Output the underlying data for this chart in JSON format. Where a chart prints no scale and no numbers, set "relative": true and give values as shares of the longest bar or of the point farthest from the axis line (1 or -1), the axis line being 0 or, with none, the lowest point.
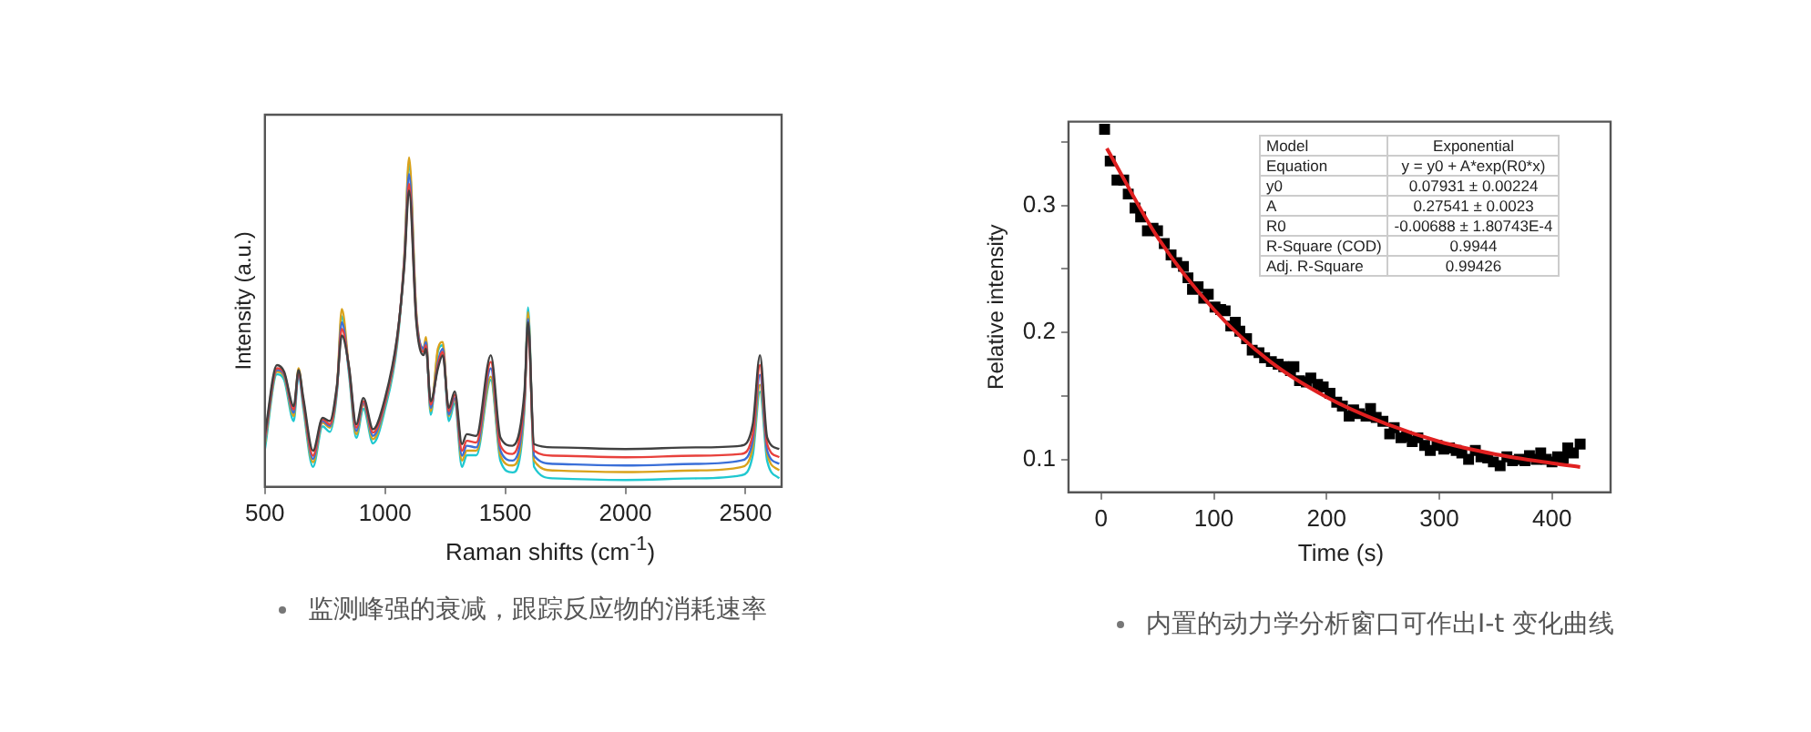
{
  "chart_data": [
    {
      "type": "line",
      "relative": true,
      "xlabel": "Raman shifts (cm$^{-1}$)",
      "ylabel": "Intensity (a.u.)",
      "xlim": [
        500,
        2650
      ],
      "xticks": [
        500,
        1000,
        1500,
        2000,
        2500
      ],
      "grid": false,
      "legend": false,
      "marker": "none",
      "x": [
        500,
        550,
        580,
        620,
        640,
        660,
        700,
        740,
        770,
        800,
        820,
        850,
        880,
        910,
        950,
        1000,
        1050,
        1080,
        1100,
        1130,
        1160,
        1170,
        1190,
        1220,
        1240,
        1265,
        1290,
        1320,
        1340,
        1380,
        1440,
        1480,
        1530,
        1580,
        1595,
        1620,
        1700,
        2000,
        2300,
        2480,
        2530,
        2560,
        2590,
        2640
      ],
      "series": [
        {
          "color": "#404040",
          "values": [
            0.16,
            0.37,
            0.35,
            0.245,
            0.355,
            0.27,
            0.11,
            0.21,
            0.2,
            0.31,
            0.46,
            0.365,
            0.19,
            0.27,
            0.175,
            0.27,
            0.455,
            0.67,
            0.9,
            0.5,
            0.4,
            0.42,
            0.26,
            0.36,
            0.4,
            0.24,
            0.29,
            0.13,
            0.16,
            0.155,
            0.4,
            0.15,
            0.125,
            0.29,
            0.5,
            0.13,
            0.12,
            0.115,
            0.12,
            0.125,
            0.19,
            0.4,
            0.15,
            0.115
          ]
        },
        {
          "color": "#e8413c",
          "values": [
            0.15,
            0.36,
            0.345,
            0.235,
            0.35,
            0.26,
            0.095,
            0.205,
            0.19,
            0.305,
            0.48,
            0.36,
            0.18,
            0.26,
            0.165,
            0.26,
            0.45,
            0.68,
            0.92,
            0.51,
            0.41,
            0.43,
            0.25,
            0.37,
            0.41,
            0.23,
            0.28,
            0.11,
            0.14,
            0.135,
            0.38,
            0.125,
            0.1,
            0.27,
            0.485,
            0.11,
            0.095,
            0.09,
            0.095,
            0.1,
            0.16,
            0.37,
            0.13,
            0.09
          ]
        },
        {
          "color": "#3a6fd8",
          "values": [
            0.14,
            0.355,
            0.34,
            0.225,
            0.345,
            0.255,
            0.085,
            0.2,
            0.185,
            0.3,
            0.5,
            0.355,
            0.17,
            0.255,
            0.155,
            0.255,
            0.445,
            0.69,
            0.95,
            0.52,
            0.42,
            0.44,
            0.24,
            0.38,
            0.42,
            0.22,
            0.27,
            0.095,
            0.125,
            0.12,
            0.36,
            0.11,
            0.08,
            0.26,
            0.51,
            0.095,
            0.07,
            0.065,
            0.07,
            0.08,
            0.14,
            0.34,
            0.11,
            0.07
          ]
        },
        {
          "color": "#d9a21b",
          "values": [
            0.13,
            0.35,
            0.335,
            0.215,
            0.36,
            0.25,
            0.075,
            0.195,
            0.18,
            0.3,
            0.54,
            0.355,
            0.16,
            0.25,
            0.145,
            0.25,
            0.44,
            0.7,
            1,
            0.53,
            0.42,
            0.455,
            0.23,
            0.42,
            0.44,
            0.215,
            0.265,
            0.08,
            0.11,
            0.11,
            0.335,
            0.095,
            0.065,
            0.25,
            0.53,
            0.08,
            0.05,
            0.045,
            0.05,
            0.06,
            0.12,
            0.31,
            0.1,
            0.05
          ]
        },
        {
          "color": "#1fc8d0",
          "values": [
            0.114,
            0.342,
            0.325,
            0.2,
            0.342,
            0.237,
            0.061,
            0.184,
            0.167,
            0.289,
            0.518,
            0.342,
            0.149,
            0.237,
            0.132,
            0.237,
            0.43,
            0.693,
            0.98,
            0.518,
            0.412,
            0.447,
            0.219,
            0.412,
            0.43,
            0.2,
            0.254,
            0.061,
            0.096,
            0.096,
            0.325,
            0.079,
            0.044,
            0.237,
            0.545,
            0.061,
            0.026,
            0.021,
            0.026,
            0.035,
            0.096,
            0.289,
            0.079,
            0.026
          ]
        }
      ],
      "annotations": [
        "监测峰强的衰减，跟踪反应物的消耗速率"
      ]
    },
    {
      "type": "scatter",
      "xlabel": "Time (s)",
      "ylabel": "Relative intensity",
      "xlim": [
        -29,
        452
      ],
      "xticks": [
        0,
        100,
        200,
        300,
        400
      ],
      "ylim": [
        0.074,
        0.366
      ],
      "yticks": [
        0.1,
        {
          "value": 0.15,
          "label": null
        },
        0.2,
        {
          "value": 0.25,
          "label": null
        },
        0.3,
        {
          "value": 0.35,
          "label": null
        }
      ],
      "grid": false,
      "legend": false,
      "series": [
        {
          "type": "scatter",
          "marker": "square",
          "color": "#000000",
          "x": [
            3,
            8,
            14,
            20,
            24,
            30,
            35,
            41,
            46,
            50,
            56,
            62,
            67,
            73,
            77,
            81,
            86,
            91,
            95,
            101,
            106,
            110,
            115,
            119,
            123,
            129,
            134,
            140,
            145,
            151,
            157,
            162,
            168,
            171,
            176,
            182,
            186,
            192,
            197,
            203,
            209,
            214,
            220,
            224,
            229,
            235,
            239,
            244,
            250,
            256,
            260,
            266,
            271,
            276,
            281,
            287,
            292,
            298,
            304,
            309,
            315,
            320,
            326,
            332,
            337,
            343,
            348,
            354,
            360,
            365,
            371,
            376,
            380,
            386,
            390,
            395,
            400,
            405,
            410,
            414,
            419,
            425
          ],
          "values": [
            0.36,
            0.335,
            0.32,
            0.32,
            0.309,
            0.298,
            0.291,
            0.28,
            0.282,
            0.28,
            0.27,
            0.261,
            0.255,
            0.252,
            0.243,
            0.234,
            0.236,
            0.227,
            0.23,
            0.22,
            0.218,
            0.217,
            0.205,
            0.208,
            0.201,
            0.195,
            0.186,
            0.184,
            0.18,
            0.177,
            0.175,
            0.173,
            0.17,
            0.173,
            0.162,
            0.161,
            0.164,
            0.159,
            0.157,
            0.152,
            0.145,
            0.142,
            0.134,
            0.139,
            0.136,
            0.134,
            0.14,
            0.133,
            0.13,
            0.12,
            0.125,
            0.117,
            0.118,
            0.114,
            0.117,
            0.111,
            0.107,
            0.111,
            0.108,
            0.109,
            0.107,
            0.105,
            0.1,
            0.107,
            0.102,
            0.101,
            0.098,
            0.095,
            0.102,
            0.099,
            0.1,
            0.099,
            0.103,
            0.1,
            0.105,
            0.1,
            0.098,
            0.102,
            0.101,
            0.109,
            0.105,
            0.112
          ]
        },
        {
          "type": "line",
          "marker": "none",
          "line_style": "solid",
          "color": "#e02020",
          "x": [
            5,
            50,
            100,
            150,
            200,
            250,
            300,
            350,
            400,
            425
          ],
          "values": [
            0.345,
            0.275,
            0.218,
            0.177,
            0.149,
            0.129,
            0.114,
            0.104,
            0.097,
            0.094
          ]
        }
      ],
      "annotations": [
        "Model",
        "Exponential",
        "Equation",
        "y = y0 + A*exp(R0*x)",
        "y0",
        "0.07931 ± 0.00224",
        "A",
        "0.27541 ± 0.0023",
        "R0",
        "-0.00688 ± 1.80743E-4",
        "R-Square (COD)",
        "0.9944",
        "Adj. R-Square",
        "0.99426",
        "内置的动力学分析窗口可作出I-t 变化曲线"
      ]
    }
  ]
}
